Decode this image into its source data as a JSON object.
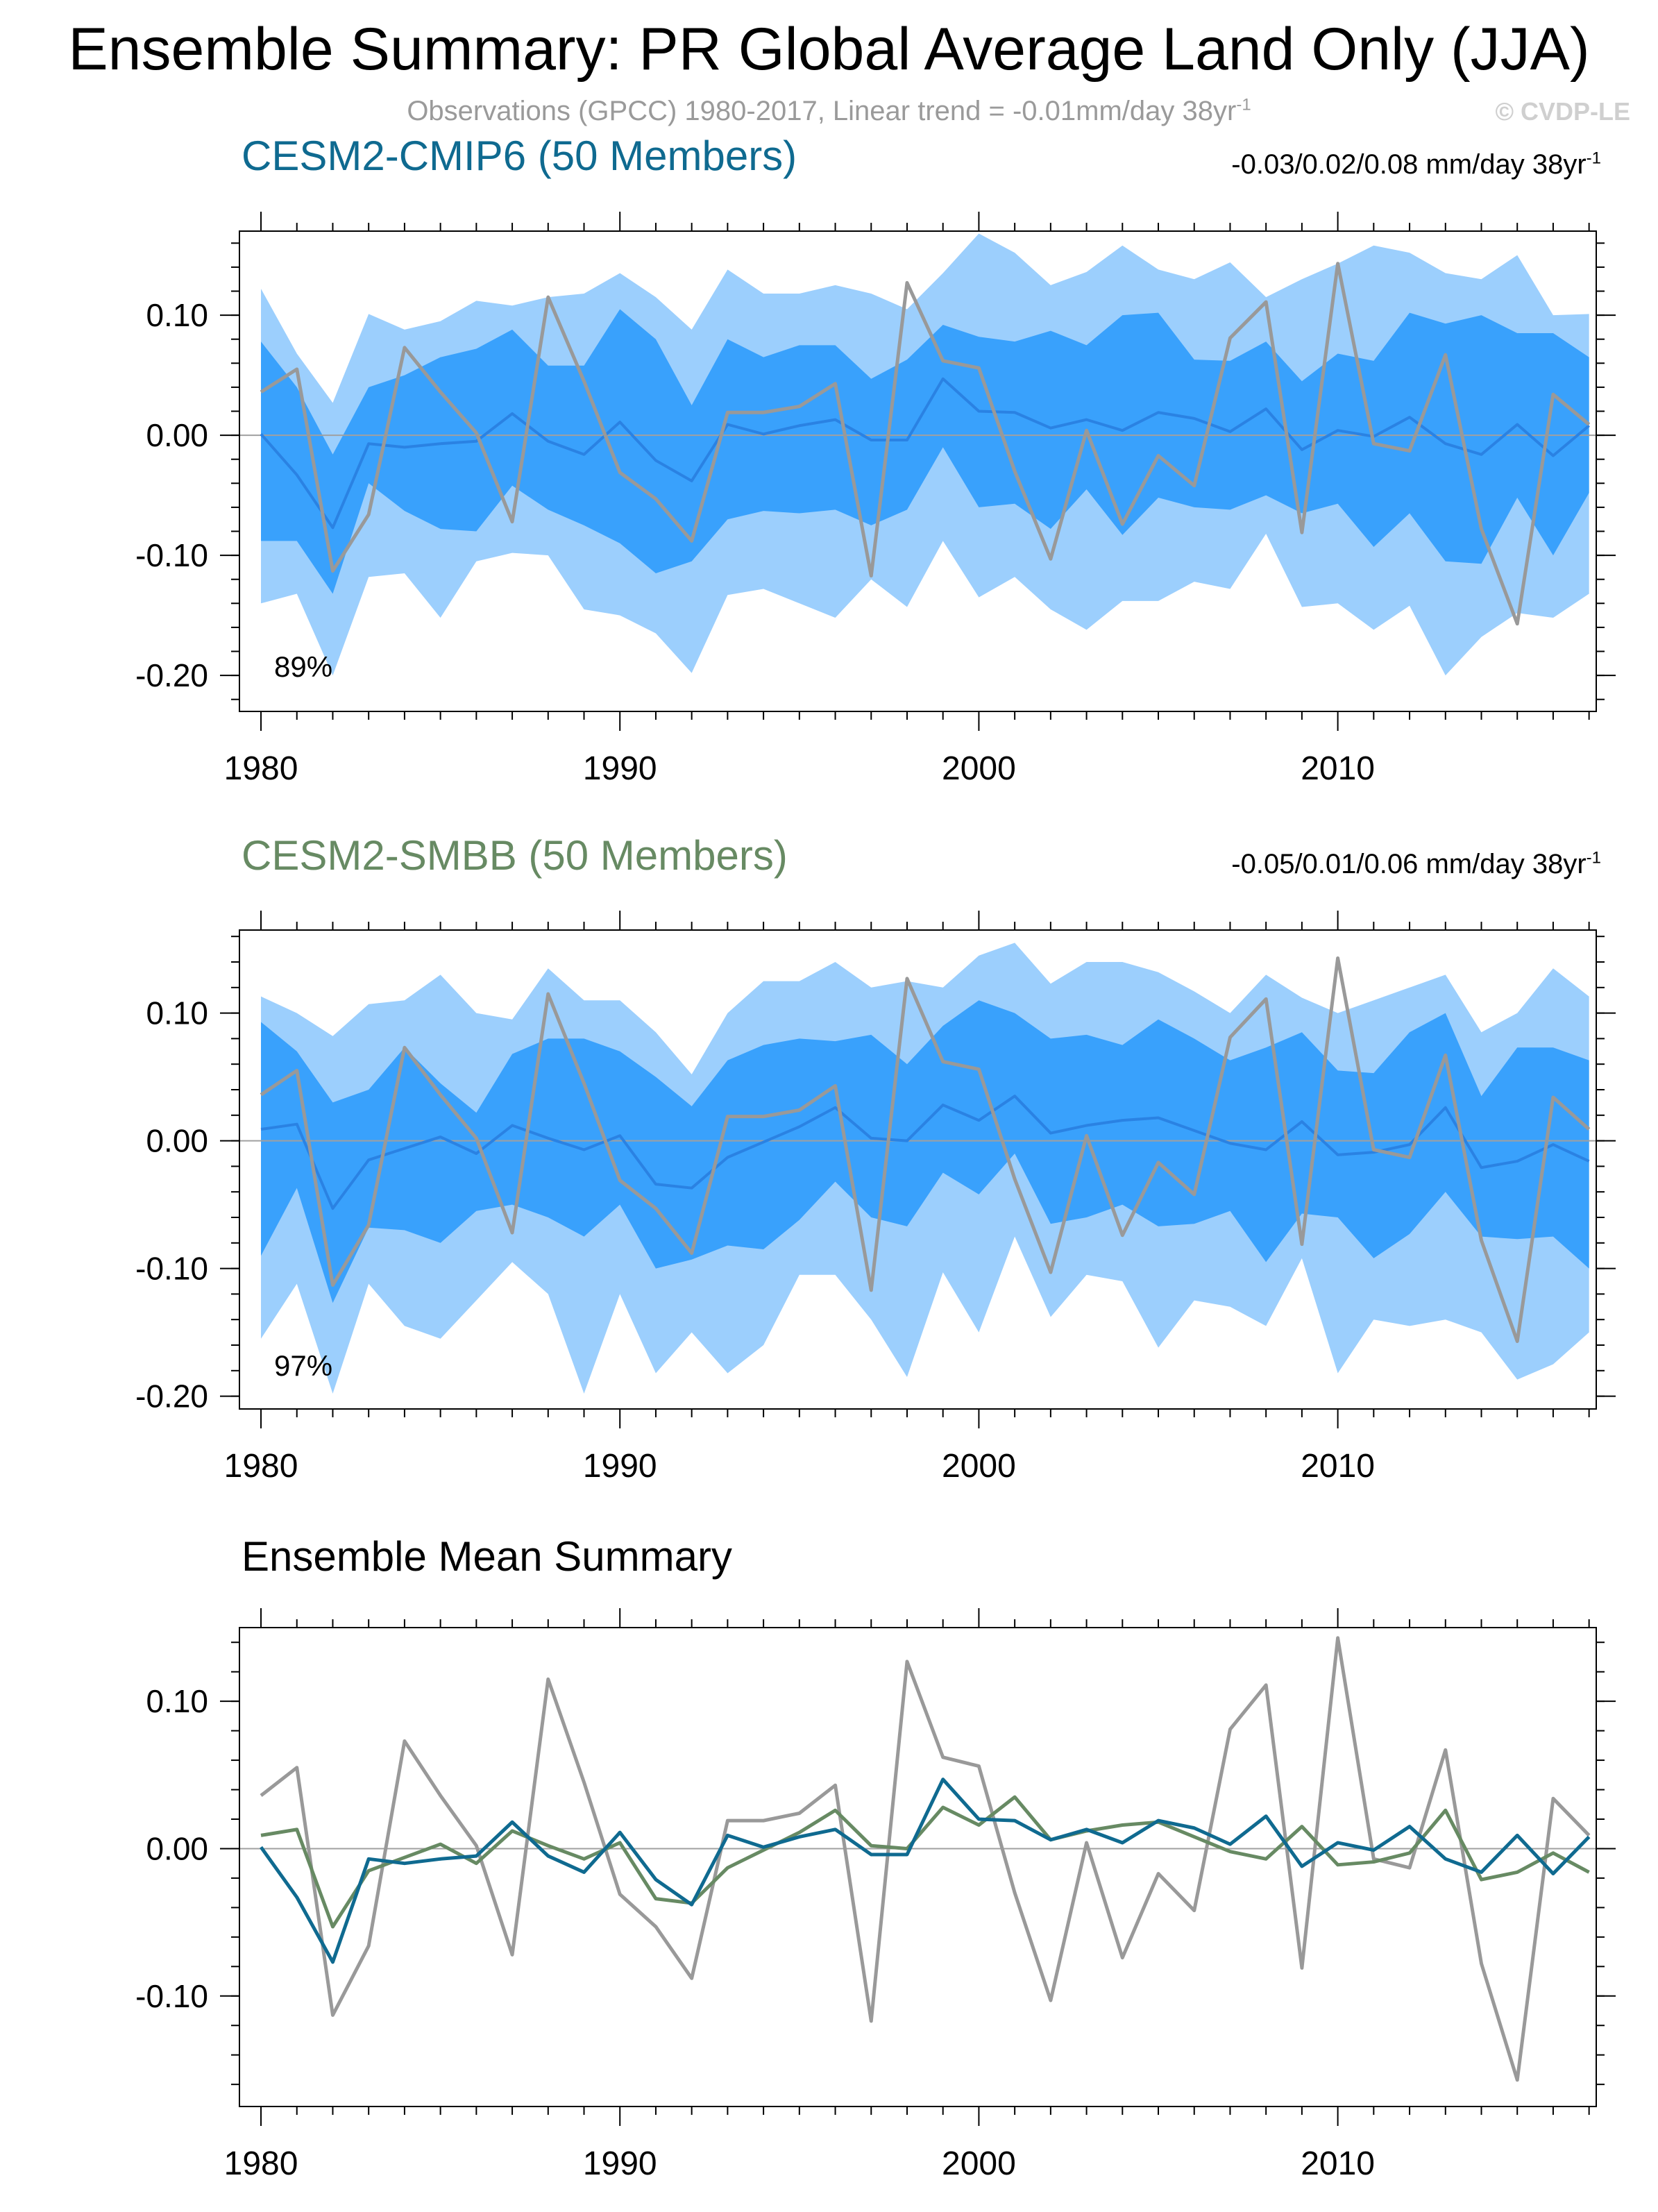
{
  "header": {
    "title": "Ensemble Summary: PR Global Average Land Only (JJA)",
    "subtitle_pre": "Observations (GPCC) 1980-2017, Linear trend = -0.01mm/day 38yr",
    "subtitle_sup": "-1",
    "copyright": "© CVDP-LE"
  },
  "colors": {
    "band_outer": "#9ccffd",
    "band_inner": "#39a1fc",
    "ens_mean_top": "#2a82e3",
    "observations": "#999999",
    "cmip6": "#0f6a90",
    "smbb": "#678a63",
    "zero_line": "#a0a0a0"
  },
  "chart_data": [
    {
      "type": "area",
      "name": "cmip6-panel",
      "title": "CESM2-CMIP6 (50 Members)",
      "trend_label": "-0.03/0.02/0.08 mm/day 38yr",
      "trend_sup": "-1",
      "percent_label": "89%",
      "x": [
        1980,
        1981,
        1982,
        1983,
        1984,
        1985,
        1986,
        1987,
        1988,
        1989,
        1990,
        1991,
        1992,
        1993,
        1994,
        1995,
        1996,
        1997,
        1998,
        1999,
        2000,
        2001,
        2002,
        2003,
        2004,
        2005,
        2006,
        2007,
        2008,
        2009,
        2010,
        2011,
        2012,
        2013,
        2014,
        2015,
        2016,
        2017
      ],
      "ylim": [
        -0.23,
        0.17
      ],
      "yticks": [
        -0.2,
        -0.1,
        0.0,
        0.1
      ],
      "ytick_labels": [
        "-0.20",
        "-0.10",
        "0.00",
        "0.10"
      ],
      "xticks": [
        1980,
        1990,
        2000,
        2010
      ],
      "xtick_labels": [
        "1980",
        "1990",
        "2000",
        "2010"
      ],
      "series": [
        {
          "name": "Ensemble range upper",
          "values": [
            0.122,
            0.068,
            0.027,
            0.101,
            0.088,
            0.095,
            0.112,
            0.108,
            0.115,
            0.118,
            0.135,
            0.115,
            0.088,
            0.138,
            0.118,
            0.118,
            0.125,
            0.118,
            0.105,
            0.135,
            0.168,
            0.152,
            0.125,
            0.136,
            0.158,
            0.138,
            0.13,
            0.144,
            0.115,
            0.13,
            0.143,
            0.158,
            0.152,
            0.135,
            0.13,
            0.15,
            0.1,
            0.101
          ]
        },
        {
          "name": "Ensemble range lower",
          "values": [
            -0.14,
            -0.132,
            -0.2,
            -0.118,
            -0.115,
            -0.152,
            -0.105,
            -0.098,
            -0.1,
            -0.145,
            -0.15,
            -0.165,
            -0.198,
            -0.133,
            -0.128,
            -0.14,
            -0.152,
            -0.12,
            -0.143,
            -0.088,
            -0.135,
            -0.118,
            -0.145,
            -0.162,
            -0.138,
            -0.138,
            -0.122,
            -0.128,
            -0.082,
            -0.143,
            -0.14,
            -0.162,
            -0.142,
            -0.2,
            -0.168,
            -0.148,
            -0.152,
            -0.132
          ]
        },
        {
          "name": "10th-90th upper",
          "values": [
            0.078,
            0.04,
            -0.016,
            0.04,
            0.05,
            0.065,
            0.072,
            0.088,
            0.058,
            0.058,
            0.105,
            0.08,
            0.025,
            0.08,
            0.065,
            0.075,
            0.075,
            0.047,
            0.063,
            0.092,
            0.082,
            0.078,
            0.087,
            0.075,
            0.1,
            0.102,
            0.063,
            0.062,
            0.078,
            0.045,
            0.068,
            0.062,
            0.102,
            0.093,
            0.1,
            0.085,
            0.085,
            0.065
          ]
        },
        {
          "name": "10th-90th lower",
          "values": [
            -0.088,
            -0.088,
            -0.132,
            -0.04,
            -0.063,
            -0.078,
            -0.08,
            -0.042,
            -0.062,
            -0.075,
            -0.09,
            -0.115,
            -0.105,
            -0.07,
            -0.063,
            -0.065,
            -0.062,
            -0.075,
            -0.062,
            -0.01,
            -0.06,
            -0.057,
            -0.078,
            -0.045,
            -0.083,
            -0.052,
            -0.06,
            -0.062,
            -0.05,
            -0.065,
            -0.057,
            -0.093,
            -0.065,
            -0.105,
            -0.107,
            -0.052,
            -0.1,
            -0.048
          ]
        },
        {
          "name": "Ensemble mean",
          "values": [
            0.001,
            -0.033,
            -0.077,
            -0.007,
            -0.01,
            -0.007,
            -0.005,
            0.018,
            -0.005,
            -0.016,
            0.011,
            -0.021,
            -0.038,
            0.009,
            0.001,
            0.008,
            0.013,
            -0.004,
            -0.004,
            0.047,
            0.02,
            0.019,
            0.006,
            0.013,
            0.004,
            0.019,
            0.014,
            0.003,
            0.022,
            -0.012,
            0.004,
            -0.001,
            0.015,
            -0.007,
            -0.016,
            0.009,
            -0.017,
            0.008
          ]
        },
        {
          "name": "Observations (GPCC)",
          "values": [
            0.036,
            0.055,
            -0.113,
            -0.066,
            0.073,
            0.036,
            0.002,
            -0.072,
            0.115,
            0.045,
            -0.031,
            -0.053,
            -0.088,
            0.019,
            0.019,
            0.024,
            0.043,
            -0.117,
            0.127,
            0.062,
            0.056,
            -0.03,
            -0.103,
            0.004,
            -0.074,
            -0.017,
            -0.042,
            0.081,
            0.111,
            -0.081,
            0.143,
            -0.007,
            -0.013,
            0.067,
            -0.078,
            -0.157,
            0.034,
            0.009
          ]
        }
      ]
    },
    {
      "type": "area",
      "name": "smbb-panel",
      "title": "CESM2-SMBB (50 Members)",
      "trend_label": "-0.05/0.01/0.06 mm/day 38yr",
      "trend_sup": "-1",
      "percent_label": "97%",
      "x": [
        1980,
        1981,
        1982,
        1983,
        1984,
        1985,
        1986,
        1987,
        1988,
        1989,
        1990,
        1991,
        1992,
        1993,
        1994,
        1995,
        1996,
        1997,
        1998,
        1999,
        2000,
        2001,
        2002,
        2003,
        2004,
        2005,
        2006,
        2007,
        2008,
        2009,
        2010,
        2011,
        2012,
        2013,
        2014,
        2015,
        2016,
        2017
      ],
      "ylim": [
        -0.21,
        0.165
      ],
      "yticks": [
        -0.2,
        -0.1,
        0.0,
        0.1
      ],
      "ytick_labels": [
        "-0.20",
        "-0.10",
        "0.00",
        "0.10"
      ],
      "xticks": [
        1980,
        1990,
        2000,
        2010
      ],
      "xtick_labels": [
        "1980",
        "1990",
        "2000",
        "2010"
      ],
      "series": [
        {
          "name": "Ensemble range upper",
          "values": [
            0.113,
            0.1,
            0.082,
            0.107,
            0.11,
            0.13,
            0.1,
            0.095,
            0.135,
            0.11,
            0.11,
            0.085,
            0.052,
            0.1,
            0.125,
            0.125,
            0.14,
            0.12,
            0.125,
            0.12,
            0.145,
            0.155,
            0.123,
            0.14,
            0.14,
            0.132,
            0.117,
            0.1,
            0.13,
            0.112,
            0.1,
            0.11,
            0.12,
            0.13,
            0.085,
            0.1,
            0.135,
            0.113
          ]
        },
        {
          "name": "Ensemble range lower",
          "values": [
            -0.155,
            -0.112,
            -0.198,
            -0.112,
            -0.145,
            -0.155,
            -0.125,
            -0.095,
            -0.12,
            -0.198,
            -0.12,
            -0.182,
            -0.15,
            -0.182,
            -0.16,
            -0.105,
            -0.105,
            -0.14,
            -0.185,
            -0.103,
            -0.15,
            -0.075,
            -0.138,
            -0.105,
            -0.11,
            -0.162,
            -0.125,
            -0.13,
            -0.145,
            -0.092,
            -0.182,
            -0.14,
            -0.145,
            -0.14,
            -0.15,
            -0.187,
            -0.175,
            -0.15
          ]
        },
        {
          "name": "10th-90th upper",
          "values": [
            0.093,
            0.07,
            0.03,
            0.04,
            0.073,
            0.045,
            0.022,
            0.068,
            0.08,
            0.08,
            0.07,
            0.05,
            0.027,
            0.063,
            0.075,
            0.08,
            0.078,
            0.083,
            0.06,
            0.09,
            0.11,
            0.1,
            0.08,
            0.083,
            0.075,
            0.095,
            0.08,
            0.063,
            0.073,
            0.085,
            0.055,
            0.053,
            0.085,
            0.1,
            0.035,
            0.073,
            0.073,
            0.063
          ]
        },
        {
          "name": "10th-90th lower",
          "values": [
            -0.09,
            -0.037,
            -0.127,
            -0.068,
            -0.07,
            -0.08,
            -0.055,
            -0.05,
            -0.06,
            -0.075,
            -0.05,
            -0.1,
            -0.093,
            -0.082,
            -0.085,
            -0.062,
            -0.032,
            -0.06,
            -0.067,
            -0.025,
            -0.042,
            -0.01,
            -0.065,
            -0.06,
            -0.05,
            -0.067,
            -0.065,
            -0.055,
            -0.095,
            -0.057,
            -0.06,
            -0.092,
            -0.073,
            -0.04,
            -0.075,
            -0.077,
            -0.075,
            -0.1
          ]
        },
        {
          "name": "Ensemble mean",
          "values": [
            0.009,
            0.013,
            -0.053,
            -0.015,
            -0.006,
            0.003,
            -0.01,
            0.012,
            0.002,
            -0.007,
            0.004,
            -0.034,
            -0.037,
            -0.013,
            -0.001,
            0.011,
            0.026,
            0.002,
            0.0,
            0.028,
            0.016,
            0.035,
            0.006,
            0.012,
            0.016,
            0.018,
            0.008,
            -0.002,
            -0.007,
            0.015,
            -0.011,
            -0.009,
            -0.003,
            0.026,
            -0.021,
            -0.016,
            -0.003,
            -0.016
          ]
        },
        {
          "name": "Observations (GPCC)",
          "values": [
            0.036,
            0.055,
            -0.113,
            -0.066,
            0.073,
            0.036,
            0.002,
            -0.072,
            0.115,
            0.045,
            -0.031,
            -0.053,
            -0.088,
            0.019,
            0.019,
            0.024,
            0.043,
            -0.117,
            0.127,
            0.062,
            0.056,
            -0.03,
            -0.103,
            0.004,
            -0.074,
            -0.017,
            -0.042,
            0.081,
            0.111,
            -0.081,
            0.143,
            -0.007,
            -0.013,
            0.067,
            -0.078,
            -0.157,
            0.034,
            0.009
          ]
        }
      ]
    },
    {
      "type": "line",
      "name": "mean-panel",
      "title": "Ensemble Mean Summary",
      "x": [
        1980,
        1981,
        1982,
        1983,
        1984,
        1985,
        1986,
        1987,
        1988,
        1989,
        1990,
        1991,
        1992,
        1993,
        1994,
        1995,
        1996,
        1997,
        1998,
        1999,
        2000,
        2001,
        2002,
        2003,
        2004,
        2005,
        2006,
        2007,
        2008,
        2009,
        2010,
        2011,
        2012,
        2013,
        2014,
        2015,
        2016,
        2017
      ],
      "ylim": [
        -0.175,
        0.15
      ],
      "yticks": [
        -0.1,
        0.0,
        0.1
      ],
      "ytick_labels": [
        "-0.10",
        "0.00",
        "0.10"
      ],
      "xticks": [
        1980,
        1990,
        2000,
        2010
      ],
      "xtick_labels": [
        "1980",
        "1990",
        "2000",
        "2010"
      ],
      "series": [
        {
          "name": "Observations (GPCC)",
          "values": [
            0.036,
            0.055,
            -0.113,
            -0.066,
            0.073,
            0.036,
            0.002,
            -0.072,
            0.115,
            0.045,
            -0.031,
            -0.053,
            -0.088,
            0.019,
            0.019,
            0.024,
            0.043,
            -0.117,
            0.127,
            0.062,
            0.056,
            -0.03,
            -0.103,
            0.004,
            -0.074,
            -0.017,
            -0.042,
            0.081,
            0.111,
            -0.081,
            0.143,
            -0.007,
            -0.013,
            0.067,
            -0.078,
            -0.157,
            0.034,
            0.009
          ]
        },
        {
          "name": "CESM2-SMBB",
          "values": [
            0.009,
            0.013,
            -0.053,
            -0.015,
            -0.006,
            0.003,
            -0.01,
            0.012,
            0.002,
            -0.007,
            0.004,
            -0.034,
            -0.037,
            -0.013,
            -0.001,
            0.011,
            0.026,
            0.002,
            0.0,
            0.028,
            0.016,
            0.035,
            0.006,
            0.012,
            0.016,
            0.018,
            0.008,
            -0.002,
            -0.007,
            0.015,
            -0.011,
            -0.009,
            -0.003,
            0.026,
            -0.021,
            -0.016,
            -0.003,
            -0.016
          ]
        },
        {
          "name": "CESM2-CMIP6",
          "values": [
            0.001,
            -0.033,
            -0.077,
            -0.007,
            -0.01,
            -0.007,
            -0.005,
            0.018,
            -0.005,
            -0.016,
            0.011,
            -0.021,
            -0.038,
            0.009,
            0.001,
            0.008,
            0.013,
            -0.004,
            -0.004,
            0.047,
            0.02,
            0.019,
            0.006,
            0.013,
            0.004,
            0.019,
            0.014,
            0.003,
            0.022,
            -0.012,
            0.004,
            -0.001,
            0.015,
            -0.007,
            -0.016,
            0.009,
            -0.017,
            0.008
          ]
        }
      ]
    }
  ]
}
